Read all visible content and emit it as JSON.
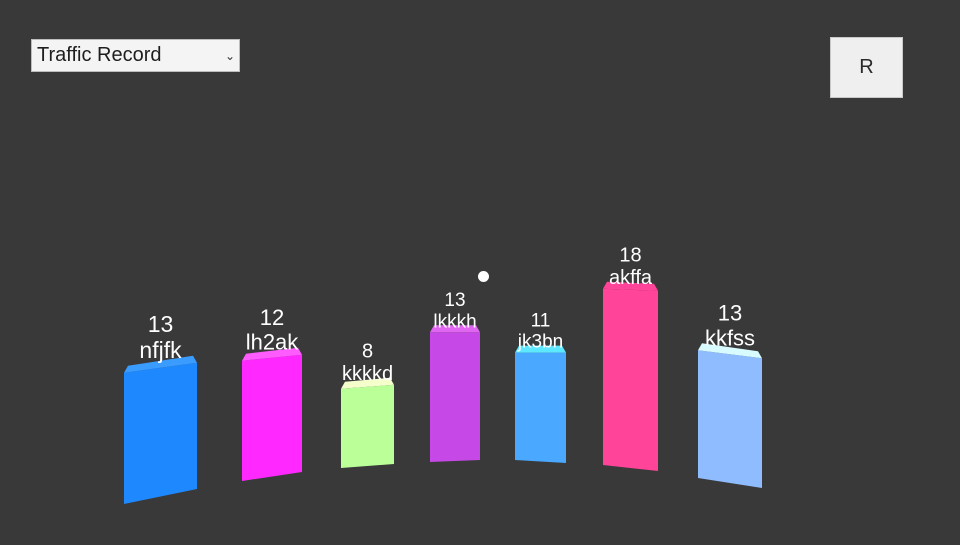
{
  "controls": {
    "dataset_select": {
      "value": "Traffic Record",
      "arrow": "⌄"
    },
    "reset_label": "R"
  },
  "colors": {
    "background": "#393939",
    "cursor_dot": "#ffffff"
  },
  "chart_data": {
    "type": "bar",
    "categories": [
      "nfjfk",
      "lh2ak",
      "kkkkd",
      "lkkkh",
      "jk3bn",
      "akffa",
      "kkfss"
    ],
    "values": [
      13,
      12,
      8,
      13,
      11,
      18,
      13
    ],
    "colors": [
      "#1e88ff",
      "#ff28ff",
      "#bbff99",
      "#c648e6",
      "#4aa8ff",
      "#ff4499",
      "#8fbcff"
    ],
    "top_colors": [
      "#3a9cff",
      "#ff5cff",
      "#f4ffcc",
      "#e066f2",
      "#5ee8ff",
      "#ff4499",
      "#d8fbff"
    ]
  }
}
